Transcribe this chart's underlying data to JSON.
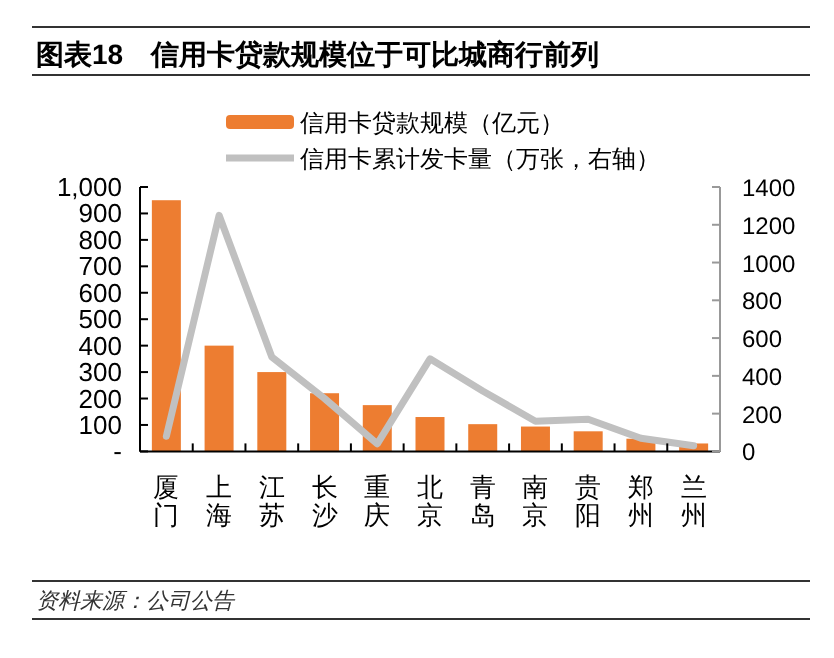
{
  "chart_data": {
    "type": "bar",
    "title": "图表18　信用卡贷款规模位于可比城商行前列",
    "categories": [
      "厦门",
      "上海",
      "江苏",
      "长沙",
      "重庆",
      "北京",
      "青岛",
      "南京",
      "贵阳",
      "郑州",
      "兰州"
    ],
    "series": [
      {
        "name": "信用卡贷款规模（亿元）",
        "color": "#ed7d31",
        "values": [
          950,
          400,
          300,
          220,
          175,
          130,
          103,
          94,
          76,
          48,
          30
        ]
      },
      {
        "name": "信用卡累计发卡量（万张，右轴）",
        "type": "line",
        "axis": "y2",
        "color": "#c0c0c0",
        "values": [
          80,
          1250,
          500,
          280,
          40,
          490,
          320,
          160,
          170,
          70,
          30
        ]
      }
    ],
    "ylim": [
      0,
      1000
    ],
    "yticks": [
      {
        "value": 0,
        "label": "-"
      },
      100,
      200,
      300,
      400,
      500,
      600,
      700,
      800,
      900,
      {
        "value": 1000,
        "label": "1,000"
      }
    ],
    "y2lim": [
      0,
      1400
    ],
    "y2ticks": [
      0,
      200,
      400,
      600,
      800,
      1000,
      1200,
      1400
    ],
    "legend": "top",
    "annotations": [
      "资料来源：公司公告"
    ]
  }
}
